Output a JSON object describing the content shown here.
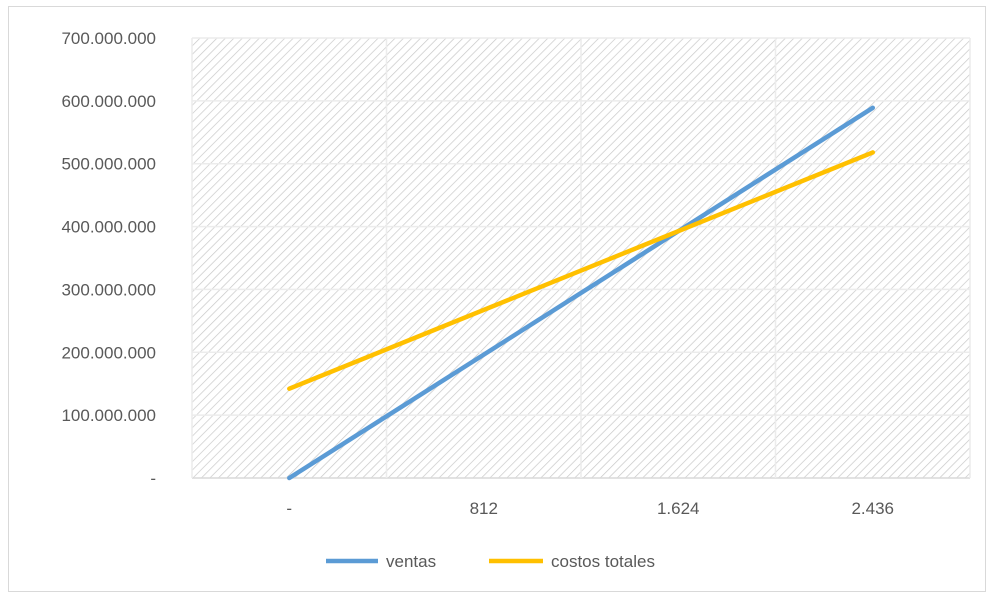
{
  "chart_data": {
    "type": "line",
    "x_categories": [
      "-",
      "812",
      "1.624",
      "2.436"
    ],
    "x": [
      0,
      812,
      1624,
      2436
    ],
    "ylim": [
      0,
      700000000
    ],
    "y_ticks": [
      0,
      100000000,
      200000000,
      300000000,
      400000000,
      500000000,
      600000000,
      700000000
    ],
    "y_tick_labels": [
      "-",
      "100.000.000",
      "200.000.000",
      "300.000.000",
      "400.000.000",
      "500.000.000",
      "600.000.000",
      "700.000.000"
    ],
    "grid": true,
    "legend_position": "bottom",
    "series": [
      {
        "name": "ventas",
        "color": "#5b9bd5",
        "x": [
          0,
          2436
        ],
        "y": [
          0,
          589000000
        ]
      },
      {
        "name": "costos totales",
        "color": "#ffc000",
        "x": [
          0,
          2436
        ],
        "y": [
          142000000,
          518000000
        ]
      }
    ]
  }
}
